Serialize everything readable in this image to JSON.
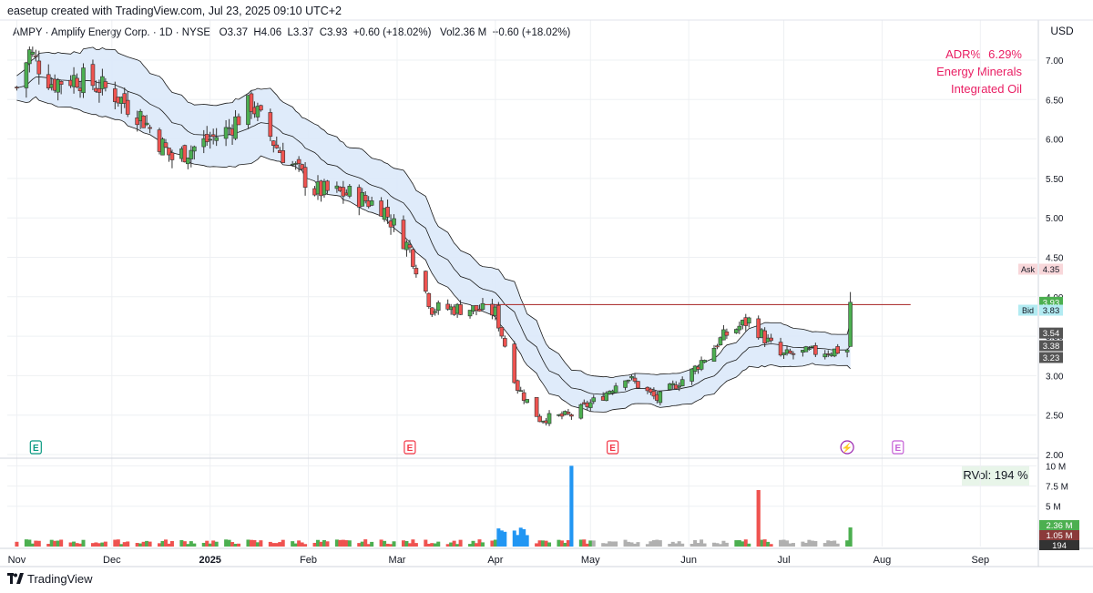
{
  "header": {
    "credit": "easetup created with TradingView.com, Jul 23, 2025 09:10 UTC+2"
  },
  "legend": {
    "symbol": "AMPY · Amplify Energy Corp. · 1D · NYSE",
    "o_label": "O",
    "o_val": "3.37",
    "h_label": "H",
    "h_val": "4.06",
    "l_label": "L",
    "l_val": "3.37",
    "c_label": "C",
    "c_val": "3.93",
    "change": "+0.60 (+18.02%)",
    "vol_label": "Vol",
    "vol_val": "2.36 M",
    "vol_change": "+0.60 (+18.02%)"
  },
  "info": {
    "adr_label": "ADR%",
    "adr_value": "6.29%",
    "sector": "Energy Minerals",
    "industry": "Integrated Oil"
  },
  "currency": "USD",
  "rvol": "RVol: 194 %",
  "footer": {
    "brand": "TradingView"
  },
  "colors": {
    "up": "#4caf50",
    "down": "#ef5350",
    "band_fill": "#dbe9f9",
    "band_line": "#1a1a1a",
    "resistance": "#b03a3a",
    "price_label": "#4caf50",
    "ask": "#f8d7da",
    "bid": "#b2ebf2",
    "vol_up": "#4caf50",
    "vol_down": "#ef5350",
    "vol_highlight": "#2196f3",
    "vol_gray": "#b0b0b0",
    "info_text": "#e91e63"
  },
  "price_axis": {
    "ticks": [
      "7.00",
      "6.50",
      "6.00",
      "5.50",
      "5.00",
      "4.50",
      "4.00",
      "3.50",
      "3.00",
      "2.50",
      "2.00"
    ],
    "markers": [
      {
        "tag": "Ask",
        "value": "4.35",
        "kind": "ask"
      },
      {
        "tag": "",
        "value": "3.93",
        "kind": "last"
      },
      {
        "tag": "Bid",
        "value": "3.83",
        "kind": "bid"
      },
      {
        "tag": "",
        "value": "3.54",
        "kind": "dark"
      },
      {
        "tag": "",
        "value": "3.38",
        "kind": "dark"
      },
      {
        "tag": "",
        "value": "3.23",
        "kind": "dark"
      }
    ]
  },
  "volume_axis": {
    "ticks": [
      "10 M",
      "7.5 M",
      "5 M"
    ],
    "markers": [
      {
        "value": "2.36 M",
        "kind": "up"
      },
      {
        "value": "1.05 M",
        "kind": "down"
      },
      {
        "value": "194",
        "kind": "dark"
      }
    ]
  },
  "time_axis": {
    "labels": [
      "Nov",
      "Dec",
      "2025",
      "Feb",
      "Mar",
      "Apr",
      "May",
      "Jun",
      "Jul",
      "Aug",
      "Sep"
    ],
    "bold": [
      "2025"
    ]
  },
  "events": [
    {
      "letter": "E",
      "kind": "earnings-past-green",
      "date": "Nov"
    },
    {
      "letter": "E",
      "kind": "earnings-past-red",
      "date": "Mar"
    },
    {
      "letter": "E",
      "kind": "earnings-past-red",
      "date": "May"
    },
    {
      "letter": "⚡",
      "kind": "dividend-upcoming",
      "date": "Jul"
    },
    {
      "letter": "E",
      "kind": "earnings-upcoming",
      "date": "Aug"
    }
  ],
  "chart_data": {
    "type": "candlestick",
    "title": "AMPY · Amplify Energy Corp. · 1D · NYSE",
    "ylim": [
      2.0,
      7.4
    ],
    "resistance_level": 3.9,
    "date_range": [
      "2024-11-01",
      "2025-07-22"
    ],
    "close_path_anchors": [
      {
        "date": "2024-11-01",
        "close": 6.65
      },
      {
        "date": "2024-11-05",
        "close": 7.1
      },
      {
        "date": "2024-11-12",
        "close": 6.72
      },
      {
        "date": "2024-11-20",
        "close": 6.78
      },
      {
        "date": "2024-12-01",
        "close": 6.6
      },
      {
        "date": "2024-12-10",
        "close": 6.3
      },
      {
        "date": "2024-12-20",
        "close": 5.75
      },
      {
        "date": "2025-01-06",
        "close": 6.1
      },
      {
        "date": "2025-01-14",
        "close": 6.45
      },
      {
        "date": "2025-01-22",
        "close": 5.9
      },
      {
        "date": "2025-02-03",
        "close": 5.35
      },
      {
        "date": "2025-02-14",
        "close": 5.3
      },
      {
        "date": "2025-02-24",
        "close": 5.15
      },
      {
        "date": "2025-03-05",
        "close": 4.6
      },
      {
        "date": "2025-03-12",
        "close": 3.85
      },
      {
        "date": "2025-03-24",
        "close": 3.85
      },
      {
        "date": "2025-04-01",
        "close": 3.8
      },
      {
        "date": "2025-04-08",
        "close": 2.85
      },
      {
        "date": "2025-04-15",
        "close": 2.45
      },
      {
        "date": "2025-04-25",
        "close": 2.5
      },
      {
        "date": "2025-05-05",
        "close": 2.75
      },
      {
        "date": "2025-05-12",
        "close": 3.0
      },
      {
        "date": "2025-05-22",
        "close": 2.7
      },
      {
        "date": "2025-06-02",
        "close": 3.05
      },
      {
        "date": "2025-06-12",
        "close": 3.5
      },
      {
        "date": "2025-06-20",
        "close": 3.7
      },
      {
        "date": "2025-06-30",
        "close": 3.25
      },
      {
        "date": "2025-07-10",
        "close": 3.3
      },
      {
        "date": "2025-07-21",
        "close": 3.33
      }
    ],
    "last_candle": {
      "date": "2025-07-22",
      "open": 3.37,
      "high": 4.06,
      "low": 3.37,
      "close": 3.93
    },
    "volume_highlights": [
      {
        "date": "2025-04-25",
        "volume_m": 10.0
      },
      {
        "date": "2025-06-23",
        "volume_m": 7.0
      },
      {
        "date": "2025-07-22",
        "volume_m": 2.36
      }
    ],
    "volume_ylim_m": [
      0,
      10.5
    ]
  }
}
